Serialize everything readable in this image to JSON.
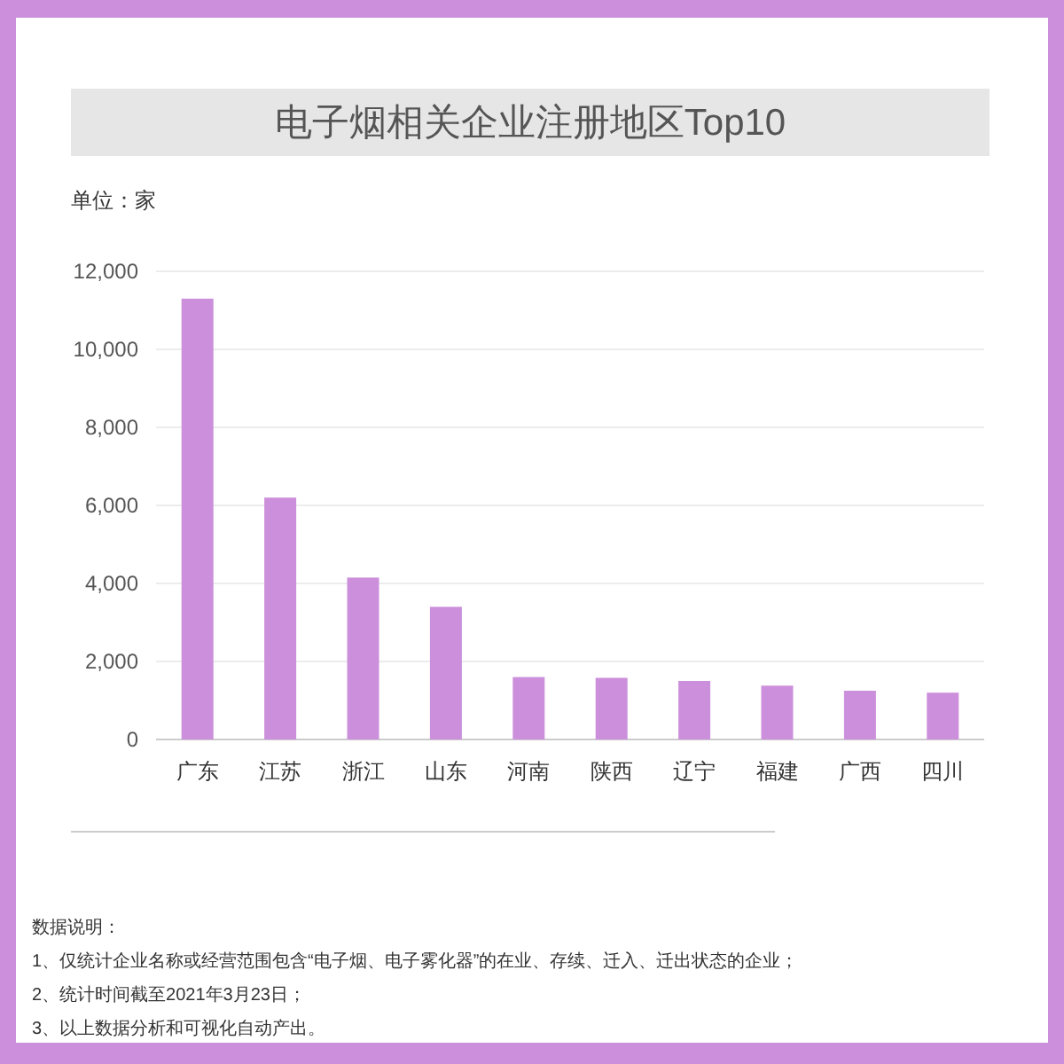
{
  "chart_data": {
    "type": "bar",
    "title": "电子烟相关企业注册地区Top10",
    "ylabel": "单位：家",
    "categories": [
      "广东",
      "江苏",
      "浙江",
      "山东",
      "河南",
      "陕西",
      "辽宁",
      "福建",
      "广西",
      "四川"
    ],
    "values": [
      11300,
      6200,
      4150,
      3400,
      1600,
      1580,
      1500,
      1380,
      1250,
      1200
    ],
    "color": "#cc8fdb",
    "ylim": [
      0,
      12000
    ],
    "yticks": [
      0,
      {
        "value": 2000,
        "label": "2,000"
      },
      {
        "value": 4000,
        "label": "4,000"
      },
      {
        "value": 6000,
        "label": "6,000"
      },
      {
        "value": 8000,
        "label": "8,000"
      },
      {
        "value": 10000,
        "label": "10,000"
      },
      {
        "value": 12000,
        "label": "12,000"
      }
    ],
    "grid": "y",
    "annotations": [
      "数据说明：",
      "1、仅统计企业名称或经营范围包含“电子烟、电子雾化器”的在业、存续、迁入、迁出状态的企业；",
      "2、统计时间截至2021年3月23日；",
      "3、以上数据分析和可视化自动产出。"
    ]
  }
}
